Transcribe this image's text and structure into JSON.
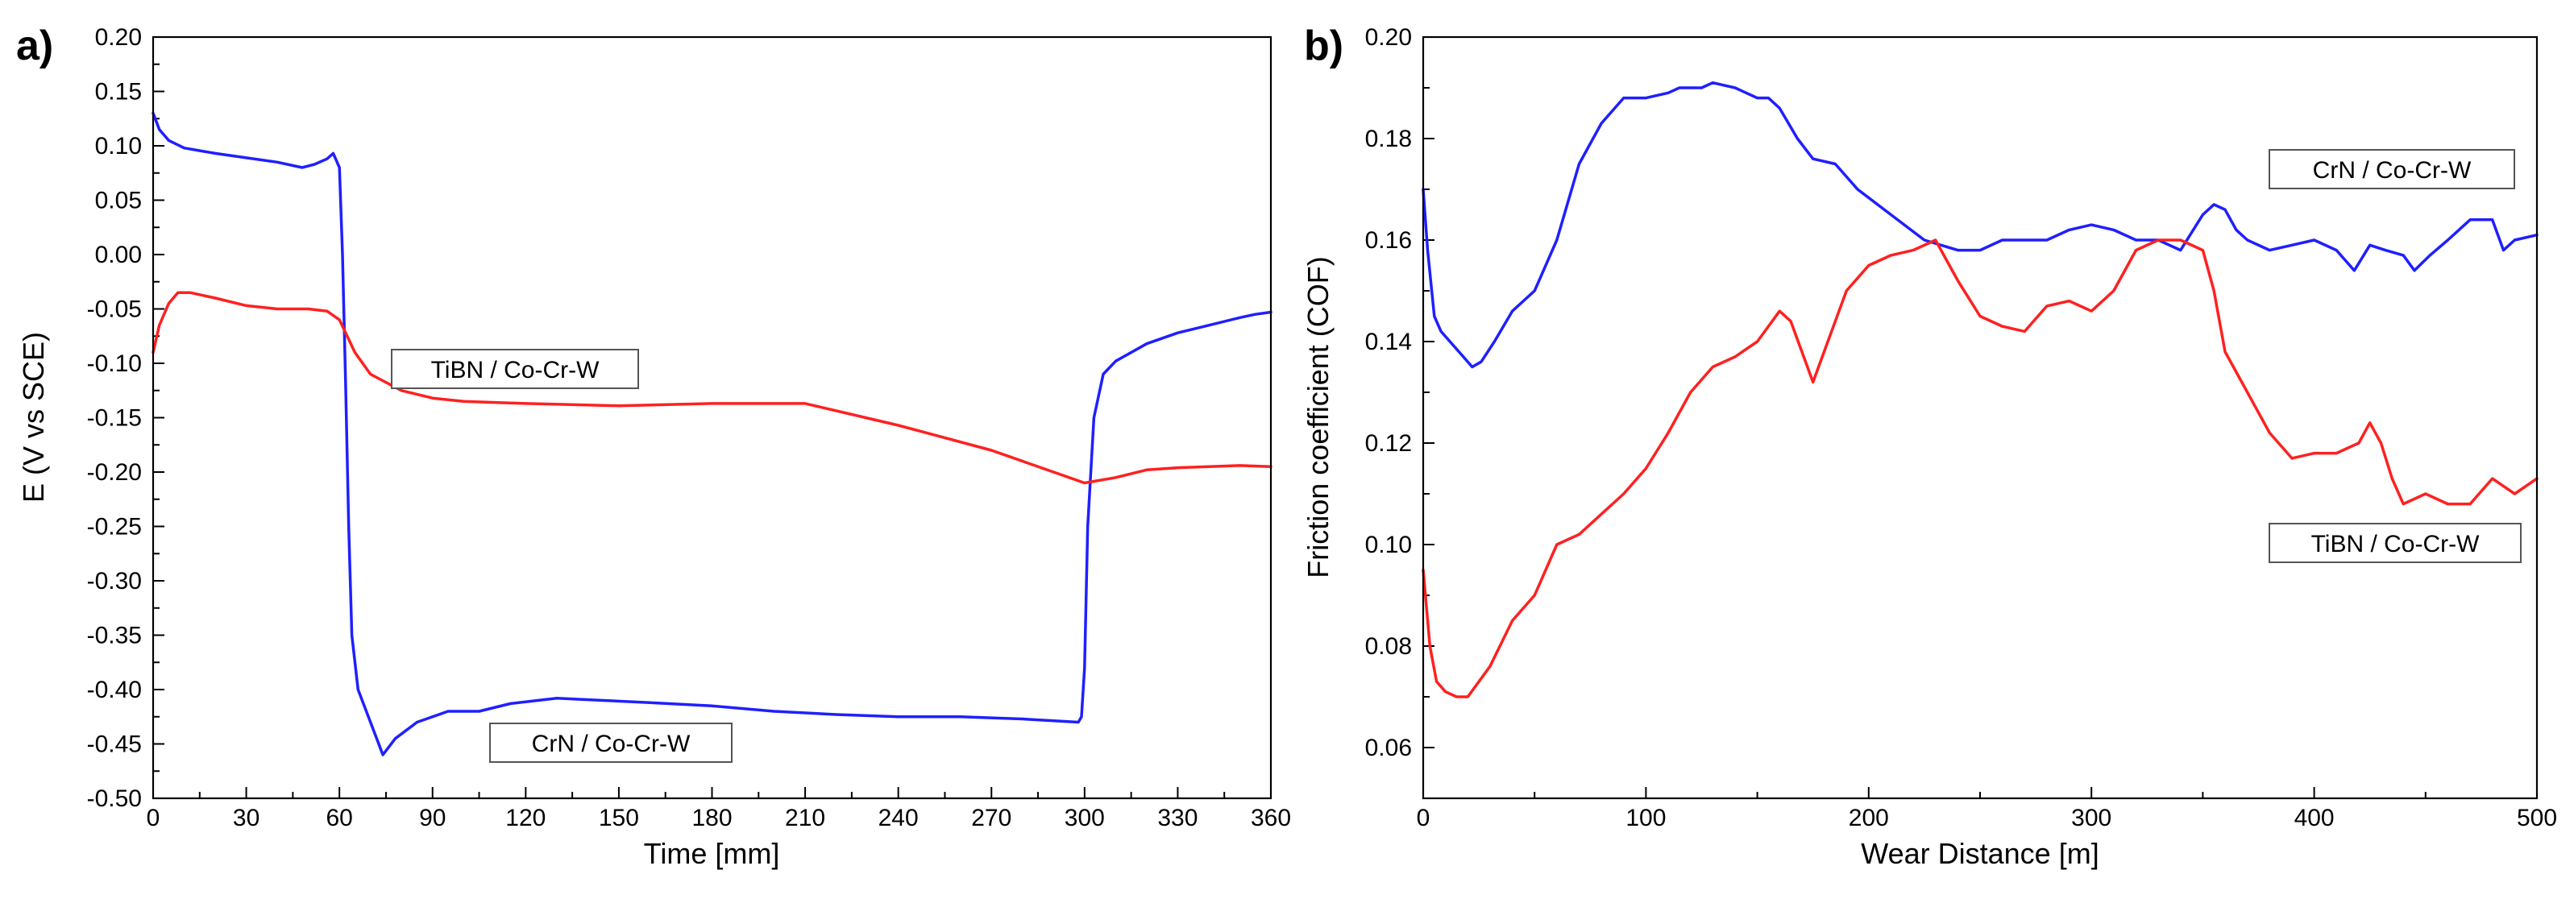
{
  "chart_data": [
    {
      "type": "line",
      "panel_label": "a)",
      "xlabel": "Time [mm]",
      "ylabel": "E (V vs SCE)",
      "xlim": [
        0,
        360
      ],
      "ylim": [
        -0.5,
        0.2
      ],
      "xticks": [
        0,
        30,
        60,
        90,
        120,
        150,
        180,
        210,
        240,
        270,
        300,
        330,
        360
      ],
      "yticks": [
        -0.5,
        -0.45,
        -0.4,
        -0.35,
        -0.3,
        -0.25,
        -0.2,
        -0.15,
        -0.1,
        -0.05,
        0.0,
        0.05,
        0.1,
        0.15,
        0.2
      ],
      "xtick_labels": [
        "0",
        "30",
        "60",
        "90",
        "120",
        "150",
        "180",
        "210",
        "240",
        "270",
        "300",
        "330",
        "360"
      ],
      "ytick_labels": [
        "-0.50",
        "-0.45",
        "-0.40",
        "-0.35",
        "-0.30",
        "-0.25",
        "-0.20",
        "-0.15",
        "-0.10",
        "-0.05",
        "0.00",
        "0.05",
        "0.10",
        "0.15",
        "0.20"
      ],
      "grid": false,
      "series": [
        {
          "name": "CrN / Co-Cr-W",
          "color": "#1f1fff",
          "x": [
            0,
            2,
            5,
            10,
            20,
            30,
            40,
            48,
            52,
            56,
            58,
            60,
            61,
            62,
            63,
            64,
            66,
            70,
            74,
            78,
            85,
            95,
            105,
            115,
            130,
            145,
            160,
            180,
            200,
            220,
            240,
            260,
            280,
            298,
            299,
            300,
            301,
            303,
            306,
            310,
            320,
            330,
            340,
            350,
            355,
            360
          ],
          "y": [
            0.13,
            0.115,
            0.105,
            0.098,
            0.093,
            0.089,
            0.085,
            0.08,
            0.083,
            0.088,
            0.093,
            0.08,
            0.0,
            -0.12,
            -0.25,
            -0.35,
            -0.4,
            -0.43,
            -0.46,
            -0.445,
            -0.43,
            -0.42,
            -0.42,
            -0.413,
            -0.408,
            -0.41,
            -0.412,
            -0.415,
            -0.42,
            -0.423,
            -0.425,
            -0.425,
            -0.427,
            -0.43,
            -0.425,
            -0.38,
            -0.25,
            -0.15,
            -0.11,
            -0.098,
            -0.082,
            -0.072,
            -0.065,
            -0.058,
            -0.055,
            -0.053
          ]
        },
        {
          "name": "TiBN / Co-Cr-W",
          "color": "#ff2020",
          "x": [
            0,
            2,
            5,
            8,
            12,
            20,
            30,
            40,
            50,
            56,
            60,
            65,
            70,
            80,
            90,
            100,
            120,
            150,
            180,
            210,
            240,
            270,
            290,
            300,
            310,
            320,
            330,
            340,
            350,
            360
          ],
          "y": [
            -0.09,
            -0.065,
            -0.045,
            -0.035,
            -0.035,
            -0.04,
            -0.047,
            -0.05,
            -0.05,
            -0.052,
            -0.06,
            -0.09,
            -0.11,
            -0.125,
            -0.132,
            -0.135,
            -0.137,
            -0.139,
            -0.137,
            -0.137,
            -0.157,
            -0.18,
            -0.2,
            -0.21,
            -0.205,
            -0.198,
            -0.196,
            -0.195,
            -0.194,
            -0.195
          ]
        }
      ],
      "annotations": [
        "TiBN / Co-Cr-W",
        "CrN / Co-Cr-W"
      ]
    },
    {
      "type": "line",
      "panel_label": "b)",
      "xlabel": "Wear Distance [m]",
      "ylabel": "Friction coefficient (COF)",
      "xlim": [
        0,
        500
      ],
      "ylim": [
        0.05,
        0.2
      ],
      "xticks": [
        0,
        100,
        200,
        300,
        400,
        500
      ],
      "yticks": [
        0.06,
        0.08,
        0.1,
        0.12,
        0.14,
        0.16,
        0.18,
        0.2
      ],
      "xtick_labels": [
        "0",
        "100",
        "200",
        "300",
        "400",
        "500"
      ],
      "ytick_labels": [
        "0.06",
        "0.08",
        "0.10",
        "0.12",
        "0.14",
        "0.16",
        "0.18",
        "0.20"
      ],
      "grid": false,
      "series": [
        {
          "name": "CrN / Co-Cr-W",
          "color": "#1f1fff",
          "x": [
            0,
            2,
            5,
            8,
            12,
            18,
            22,
            26,
            32,
            40,
            50,
            60,
            70,
            80,
            90,
            100,
            110,
            115,
            125,
            130,
            140,
            150,
            155,
            160,
            168,
            175,
            185,
            195,
            210,
            225,
            240,
            250,
            260,
            270,
            280,
            290,
            300,
            310,
            320,
            330,
            340,
            350,
            355,
            360,
            365,
            370,
            380,
            390,
            400,
            410,
            418,
            425,
            432,
            440,
            445,
            452,
            460,
            470,
            480,
            485,
            490,
            500
          ],
          "y": [
            0.17,
            0.158,
            0.145,
            0.142,
            0.14,
            0.137,
            0.135,
            0.136,
            0.14,
            0.146,
            0.15,
            0.16,
            0.175,
            0.183,
            0.188,
            0.188,
            0.189,
            0.19,
            0.19,
            0.191,
            0.19,
            0.188,
            0.188,
            0.186,
            0.18,
            0.176,
            0.175,
            0.17,
            0.165,
            0.16,
            0.158,
            0.158,
            0.16,
            0.16,
            0.16,
            0.162,
            0.163,
            0.162,
            0.16,
            0.16,
            0.158,
            0.165,
            0.167,
            0.166,
            0.162,
            0.16,
            0.158,
            0.159,
            0.16,
            0.158,
            0.154,
            0.159,
            0.158,
            0.157,
            0.154,
            0.157,
            0.16,
            0.164,
            0.164,
            0.158,
            0.16,
            0.161
          ]
        },
        {
          "name": "TiBN / Co-Cr-W",
          "color": "#ff2020",
          "x": [
            0,
            3,
            6,
            10,
            15,
            20,
            25,
            30,
            40,
            50,
            60,
            70,
            80,
            90,
            100,
            110,
            120,
            130,
            140,
            150,
            155,
            160,
            165,
            170,
            175,
            180,
            190,
            200,
            210,
            220,
            230,
            240,
            250,
            260,
            270,
            280,
            290,
            300,
            310,
            320,
            330,
            340,
            350,
            355,
            360,
            370,
            380,
            390,
            400,
            410,
            420,
            425,
            430,
            435,
            440,
            450,
            460,
            470,
            480,
            490,
            500
          ],
          "y": [
            0.095,
            0.08,
            0.073,
            0.071,
            0.07,
            0.07,
            0.073,
            0.076,
            0.085,
            0.09,
            0.1,
            0.102,
            0.106,
            0.11,
            0.115,
            0.122,
            0.13,
            0.135,
            0.137,
            0.14,
            0.143,
            0.146,
            0.144,
            0.138,
            0.132,
            0.138,
            0.15,
            0.155,
            0.157,
            0.158,
            0.16,
            0.152,
            0.145,
            0.143,
            0.142,
            0.147,
            0.148,
            0.146,
            0.15,
            0.158,
            0.16,
            0.16,
            0.158,
            0.15,
            0.138,
            0.13,
            0.122,
            0.117,
            0.118,
            0.118,
            0.12,
            0.124,
            0.12,
            0.113,
            0.108,
            0.11,
            0.108,
            0.108,
            0.113,
            0.11,
            0.113
          ]
        }
      ],
      "annotations": [
        "CrN / Co-Cr-W",
        "TiBN / Co-Cr-W"
      ]
    }
  ]
}
